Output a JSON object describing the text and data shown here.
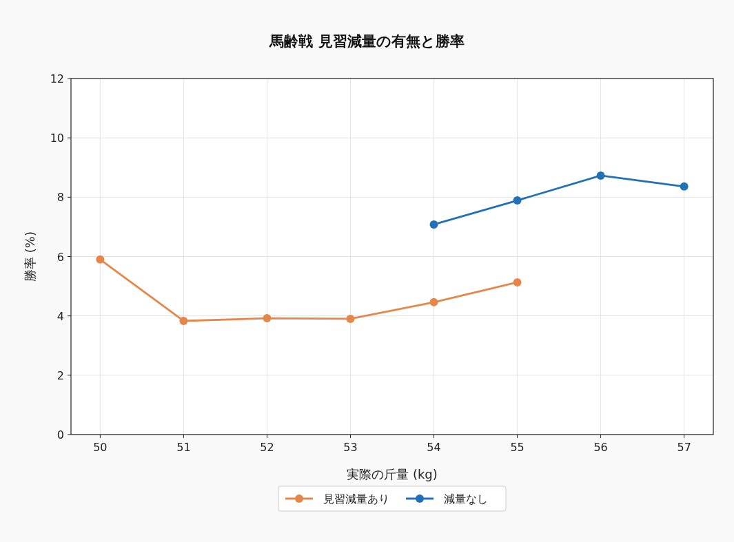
{
  "chart_data": {
    "type": "line",
    "title": "馬齢戦 見習減量の有無と勝率",
    "xlabel": "実際の斤量 (kg)",
    "ylabel": "勝率 (%)",
    "xlim": [
      49.65,
      57.35
    ],
    "xticks": [
      50,
      51,
      52,
      53,
      54,
      55,
      56,
      57
    ],
    "ylim": [
      0,
      12
    ],
    "yticks": [
      0,
      2,
      4,
      6,
      8,
      10,
      12
    ],
    "grid": true,
    "legend": "bottom",
    "marker": "circle",
    "line_style": "solid",
    "series": [
      {
        "name": "見習減量あり",
        "color": "#e5874a",
        "x": [
          50,
          51,
          52,
          53,
          54,
          55
        ],
        "values": [
          5.9,
          3.83,
          3.92,
          3.9,
          4.46,
          5.13
        ]
      },
      {
        "name": "減量なし",
        "color": "#2270b5",
        "x": [
          54,
          55,
          56,
          57
        ],
        "values": [
          7.08,
          7.89,
          8.73,
          8.36
        ]
      }
    ]
  }
}
